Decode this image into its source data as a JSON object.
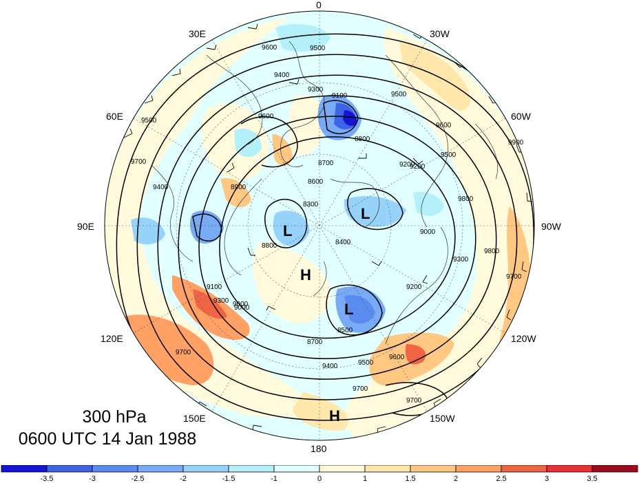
{
  "title": {
    "level": "300 hPa",
    "time": "0600 UTC 14 Jan 1988"
  },
  "longitude_labels": [
    "0",
    "30W",
    "60W",
    "90W",
    "120W",
    "150W",
    "180",
    "150E",
    "120E",
    "90E",
    "60E",
    "30E"
  ],
  "contour_labels": [
    "9500",
    "9600",
    "9400",
    "9300",
    "9100",
    "9200",
    "8800",
    "8700",
    "8600",
    "8400",
    "8300",
    "8800",
    "8900",
    "9000",
    "9700",
    "9400",
    "9500",
    "9600",
    "9700",
    "8500",
    "8700",
    "9400",
    "9500",
    "9600",
    "9700",
    "9700",
    "9800",
    "9900",
    "9800",
    "9700",
    "9600",
    "9500",
    "9300",
    "9200",
    "9000",
    "9200",
    "9100",
    "9000",
    "9300",
    "9500"
  ],
  "pressure_centers": [
    {
      "label": "L",
      "color": "#000000"
    },
    {
      "label": "L",
      "color": "#000000"
    },
    {
      "label": "L",
      "color": "#000000"
    },
    {
      "label": "H",
      "color": "#000000"
    },
    {
      "label": "H",
      "color": "#000000"
    }
  ],
  "colorbar": {
    "labels": [
      "-3.5",
      "-3",
      "-2.5",
      "-2",
      "-1.5",
      "-1",
      "0",
      "1",
      "1.5",
      "2",
      "2.5",
      "3",
      "3.5"
    ],
    "colors": [
      "#1414d2",
      "#3c64e6",
      "#5a8cf0",
      "#78aaf5",
      "#96d2fa",
      "#b4f0fa",
      "#e1ffff",
      "#fffadc",
      "#ffe6aa",
      "#ffc882",
      "#ffa064",
      "#f06446",
      "#e63232",
      "#a00a1e"
    ]
  }
}
